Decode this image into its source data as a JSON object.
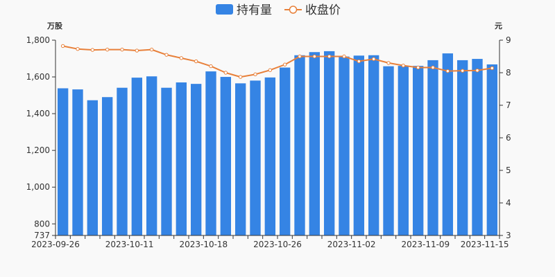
{
  "chart_data": {
    "type": "bar",
    "legend": {
      "position": "top-center",
      "bar_label": "持有量",
      "line_label": "收盘价"
    },
    "colors": {
      "bar": "#3584e4",
      "line": "#e8803a",
      "axis": "#333333",
      "background": "#f9f9f9"
    },
    "y_left": {
      "unit": "万股",
      "min": 737,
      "max": 1800,
      "ticks": [
        "737",
        "800",
        "1,000",
        "1,200",
        "1,400",
        "1,600",
        "1,800"
      ],
      "tick_values": [
        737,
        800,
        1000,
        1200,
        1400,
        1600,
        1800
      ]
    },
    "y_right": {
      "unit": "元",
      "min": 3,
      "max": 9,
      "ticks": [
        "3",
        "4",
        "5",
        "6",
        "7",
        "8",
        "9"
      ],
      "tick_values": [
        3,
        4,
        5,
        6,
        7,
        8,
        9
      ]
    },
    "x_labels": [
      {
        "index": 0,
        "label": "2023-09-26"
      },
      {
        "index": 5,
        "label": "2023-10-11"
      },
      {
        "index": 10,
        "label": "2023-10-18"
      },
      {
        "index": 15,
        "label": "2023-10-26"
      },
      {
        "index": 20,
        "label": "2023-11-02"
      },
      {
        "index": 25,
        "label": "2023-11-09"
      },
      {
        "index": 29,
        "label": "2023-11-15"
      }
    ],
    "series": [
      {
        "name": "持有量",
        "type": "bar",
        "axis": "left",
        "values": [
          1538,
          1532,
          1473,
          1490,
          1541,
          1596,
          1603,
          1541,
          1570,
          1562,
          1630,
          1600,
          1565,
          1580,
          1597,
          1651,
          1718,
          1735,
          1740,
          1711,
          1716,
          1718,
          1658,
          1660,
          1660,
          1691,
          1728,
          1691,
          1698,
          1668
        ]
      },
      {
        "name": "收盘价",
        "type": "line",
        "axis": "right",
        "values": [
          8.82,
          8.73,
          8.7,
          8.71,
          8.71,
          8.68,
          8.71,
          8.55,
          8.45,
          8.35,
          8.2,
          8.0,
          7.87,
          7.95,
          8.08,
          8.25,
          8.5,
          8.5,
          8.5,
          8.5,
          8.35,
          8.42,
          8.3,
          8.22,
          8.16,
          8.16,
          8.05,
          8.06,
          8.07,
          8.14
        ]
      }
    ]
  }
}
